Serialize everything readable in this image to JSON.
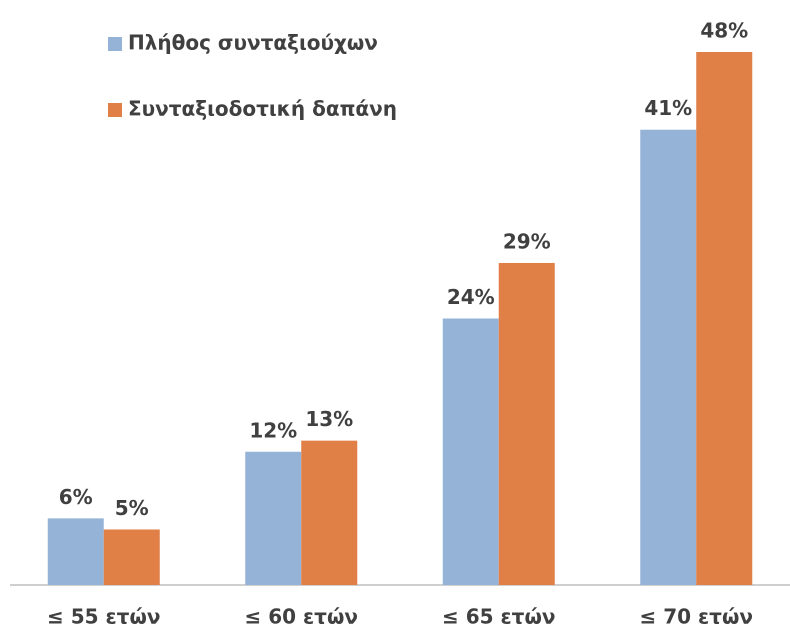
{
  "chart_data": {
    "type": "bar",
    "categories": [
      "≤ 55 ετών",
      "≤ 60 ετών",
      "≤ 65 ετών",
      "≤ 70 ετών"
    ],
    "series": [
      {
        "name": "Πλήθος συνταξιούχων",
        "color": "#95b3d7",
        "values": [
          6,
          12,
          24,
          41
        ],
        "value_labels": [
          "6%",
          "12%",
          "24%",
          "41%"
        ]
      },
      {
        "name": "Συνταξιοδοτική δαπάνη",
        "color": "#e07f46",
        "values": [
          5,
          13,
          29,
          48
        ],
        "value_labels": [
          "5%",
          "13%",
          "29%",
          "48%"
        ]
      }
    ],
    "legend": "top-left"
  }
}
